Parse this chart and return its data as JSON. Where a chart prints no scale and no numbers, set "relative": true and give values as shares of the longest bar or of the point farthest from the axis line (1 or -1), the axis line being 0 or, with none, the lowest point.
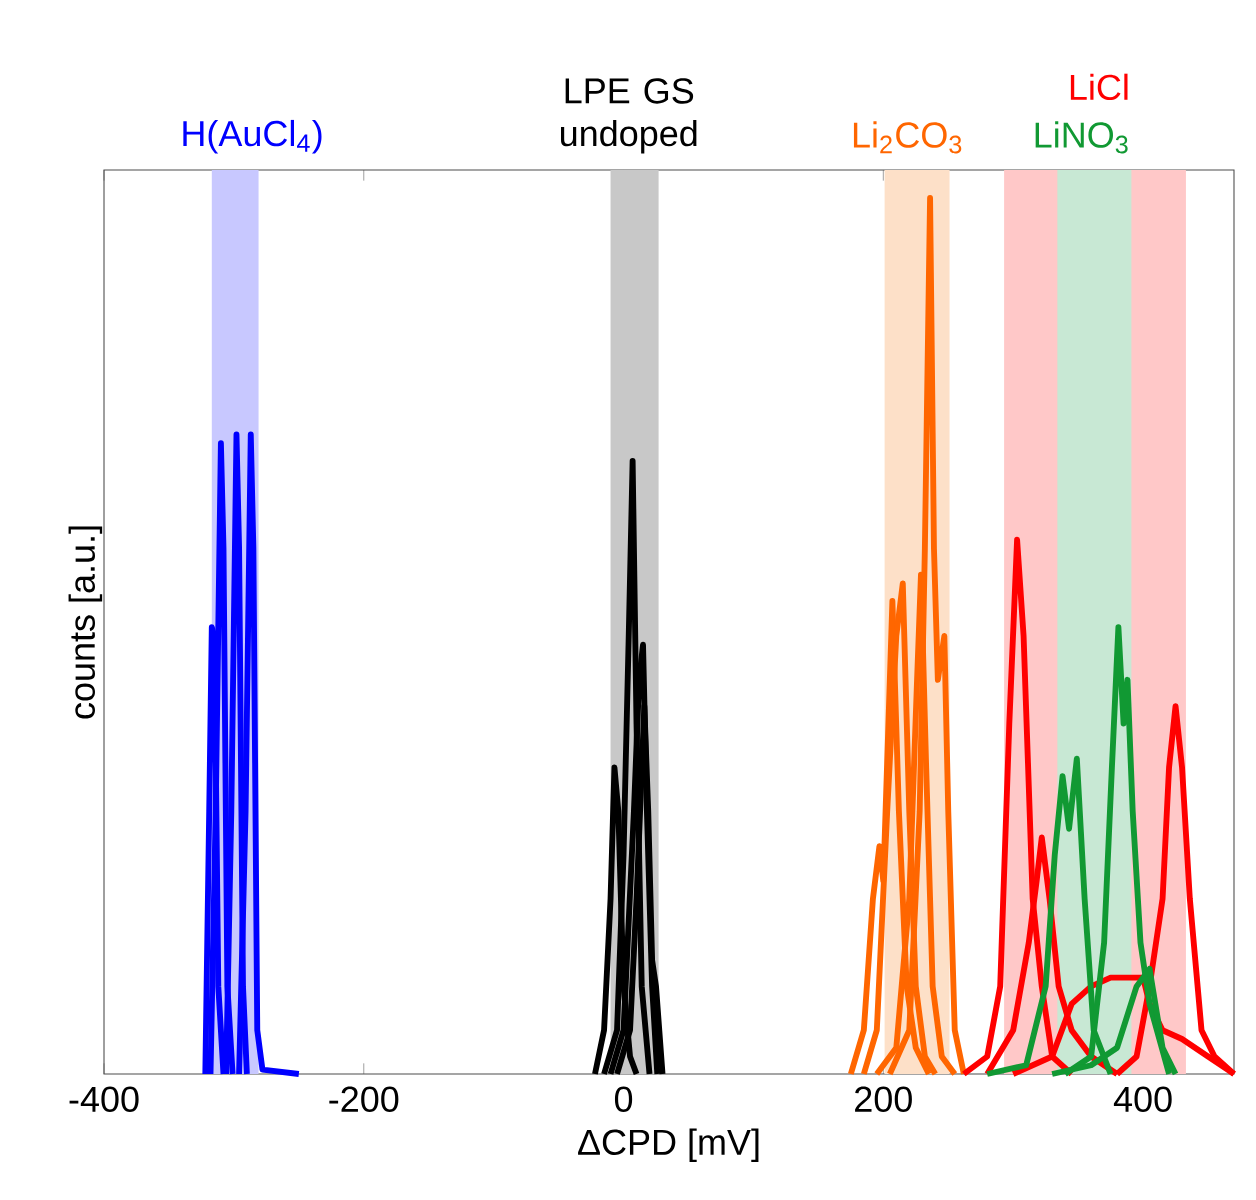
{
  "chart_data": {
    "type": "line",
    "relative": true,
    "xlabel": "ΔCPD [mV]",
    "ylabel": "counts [a.u.]",
    "xlim": [
      -400,
      470
    ],
    "xticks": [
      -400,
      -200,
      0,
      200,
      400
    ],
    "bands": [
      {
        "axis": "x",
        "from": -317,
        "to": -281,
        "color": "#c8c8ff"
      },
      {
        "axis": "x",
        "from": -10,
        "to": 27,
        "color": "#c8c8c8"
      },
      {
        "axis": "x",
        "from": 201,
        "to": 251,
        "color": "#fde0c8"
      },
      {
        "axis": "x",
        "from": 293,
        "to": 433,
        "color": "#ffc8c8"
      },
      {
        "axis": "x",
        "from": 334,
        "to": 391,
        "color": "#c8e8d4"
      }
    ],
    "series": [
      {
        "name": "H(AuCl$_{4}$)",
        "color": "#0000ff",
        "x": [
          -322,
          -319,
          -317,
          -315,
          -312,
          -308
        ],
        "values": [
          0,
          0.3,
          0.51,
          0.5,
          0.1,
          0
        ]
      },
      {
        "color": "#0000ff",
        "x": [
          -318,
          -314,
          -310,
          -308,
          -305,
          -301
        ],
        "values": [
          0,
          0.3,
          0.72,
          0.6,
          0.1,
          0
        ]
      },
      {
        "color": "#0000ff",
        "x": [
          -306,
          -302,
          -298,
          -296,
          -293,
          -290
        ],
        "values": [
          0,
          0.3,
          0.73,
          0.6,
          0.1,
          0
        ]
      },
      {
        "color": "#0000ff",
        "x": [
          -296,
          -291,
          -287,
          -285,
          -282,
          -278,
          -250
        ],
        "values": [
          0,
          0.3,
          0.73,
          0.6,
          0.05,
          0.005,
          0
        ]
      },
      {
        "name": "LPE GS undoped",
        "color": "#000000",
        "x": [
          -22,
          -15,
          -10,
          -7,
          -4,
          0,
          5,
          10
        ],
        "values": [
          0,
          0.05,
          0.2,
          0.35,
          0.3,
          0.1,
          0.02,
          0
        ]
      },
      {
        "color": "#000000",
        "x": [
          -15,
          -5,
          0,
          4,
          7,
          10,
          14,
          20
        ],
        "values": [
          0,
          0.05,
          0.25,
          0.5,
          0.7,
          0.4,
          0.1,
          0
        ]
      },
      {
        "color": "#000000",
        "x": [
          -10,
          0,
          8,
          12,
          15,
          18,
          22,
          26
        ],
        "values": [
          0,
          0.05,
          0.3,
          0.45,
          0.49,
          0.3,
          0.1,
          0
        ]
      },
      {
        "color": "#000000",
        "x": [
          -5,
          5,
          10,
          16,
          19,
          22,
          25,
          30
        ],
        "values": [
          0,
          0.05,
          0.2,
          0.42,
          0.3,
          0.13,
          0.1,
          0
        ]
      },
      {
        "name": "Li$_{2}$CO$_{3}$",
        "color": "#ff6600",
        "x": [
          175,
          185,
          192,
          197,
          200,
          207,
          212,
          218,
          225,
          235
        ],
        "values": [
          0,
          0.05,
          0.2,
          0.26,
          0.22,
          0.54,
          0.3,
          0.1,
          0.03,
          0
        ]
      },
      {
        "color": "#ff6600",
        "x": [
          185,
          195,
          203,
          210,
          215,
          220,
          225,
          232,
          240
        ],
        "values": [
          0,
          0.05,
          0.3,
          0.5,
          0.56,
          0.3,
          0.1,
          0.02,
          0
        ]
      },
      {
        "color": "#ff6600",
        "x": [
          195,
          210,
          220,
          226,
          229,
          233,
          238,
          245,
          255
        ],
        "values": [
          0,
          0.03,
          0.2,
          0.45,
          0.57,
          0.35,
          0.1,
          0.02,
          0
        ]
      },
      {
        "color": "#ff6600",
        "x": [
          205,
          220,
          228,
          232,
          236,
          239,
          242,
          247,
          250,
          255,
          262
        ],
        "values": [
          0,
          0.05,
          0.3,
          0.6,
          1.0,
          0.6,
          0.45,
          0.5,
          0.3,
          0.05,
          0
        ]
      },
      {
        "name": "LiCl",
        "color": "#ff0000",
        "x": [
          262,
          280,
          290,
          297,
          303,
          308,
          315,
          322,
          330,
          345
        ],
        "values": [
          0,
          0.02,
          0.1,
          0.4,
          0.61,
          0.5,
          0.2,
          0.1,
          0.02,
          0
        ]
      },
      {
        "color": "#ff0000",
        "x": [
          280,
          300,
          312,
          318,
          322,
          328,
          335,
          345,
          360,
          380
        ],
        "values": [
          0,
          0.05,
          0.15,
          0.22,
          0.27,
          0.2,
          0.1,
          0.05,
          0.02,
          0
        ]
      },
      {
        "color": "#ff0000",
        "x": [
          380,
          395,
          405,
          415,
          420,
          425,
          430,
          436,
          445,
          455,
          470
        ],
        "values": [
          0,
          0.02,
          0.1,
          0.2,
          0.35,
          0.42,
          0.35,
          0.2,
          0.05,
          0.02,
          0
        ]
      },
      {
        "color": "#ff0000",
        "x": [
          300,
          330,
          345,
          360,
          375,
          390,
          400,
          405,
          415,
          430,
          450,
          465,
          470
        ],
        "values": [
          0,
          0.02,
          0.08,
          0.1,
          0.11,
          0.11,
          0.11,
          0.08,
          0.05,
          0.04,
          0.02,
          0.005,
          0
        ]
      },
      {
        "name": "LiNO$_{3}$",
        "color": "#119933",
        "x": [
          280,
          310,
          325,
          332,
          338,
          343,
          349,
          355,
          362,
          375
        ],
        "values": [
          0,
          0.01,
          0.1,
          0.25,
          0.34,
          0.28,
          0.36,
          0.2,
          0.05,
          0
        ]
      },
      {
        "color": "#119933",
        "x": [
          340,
          360,
          370,
          376,
          381,
          385,
          388,
          392,
          398,
          405,
          420
        ],
        "values": [
          0,
          0.02,
          0.15,
          0.35,
          0.51,
          0.4,
          0.45,
          0.3,
          0.15,
          0.08,
          0
        ]
      },
      {
        "color": "#119933",
        "x": [
          330,
          360,
          380,
          395,
          405,
          415,
          425
        ],
        "values": [
          0,
          0.01,
          0.03,
          0.1,
          0.12,
          0.03,
          0
        ]
      }
    ]
  }
}
